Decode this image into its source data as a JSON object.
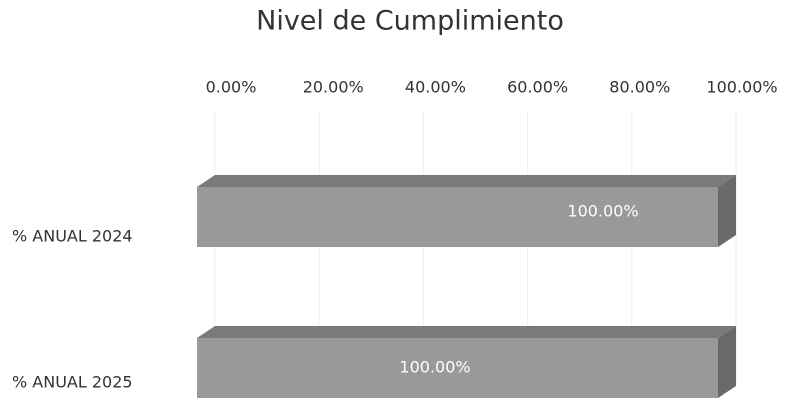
{
  "chart_data": {
    "type": "bar",
    "orientation": "horizontal",
    "title": "Nivel de Cumplimiento",
    "categories": [
      "% ANUAL 2024",
      "% ANUAL 2025"
    ],
    "values": [
      100,
      100
    ],
    "value_labels": [
      "100.00%",
      "100.00%"
    ],
    "color": "#999999",
    "xlim": [
      0,
      100
    ],
    "xticks": [
      {
        "value": 0,
        "label": "0.00%"
      },
      {
        "value": 20,
        "label": "20.00%"
      },
      {
        "value": 40,
        "label": "40.00%"
      },
      {
        "value": 60,
        "label": "60.00%"
      },
      {
        "value": 80,
        "label": "80.00%"
      },
      {
        "value": 100,
        "label": "100.00%"
      }
    ],
    "grid": true
  }
}
